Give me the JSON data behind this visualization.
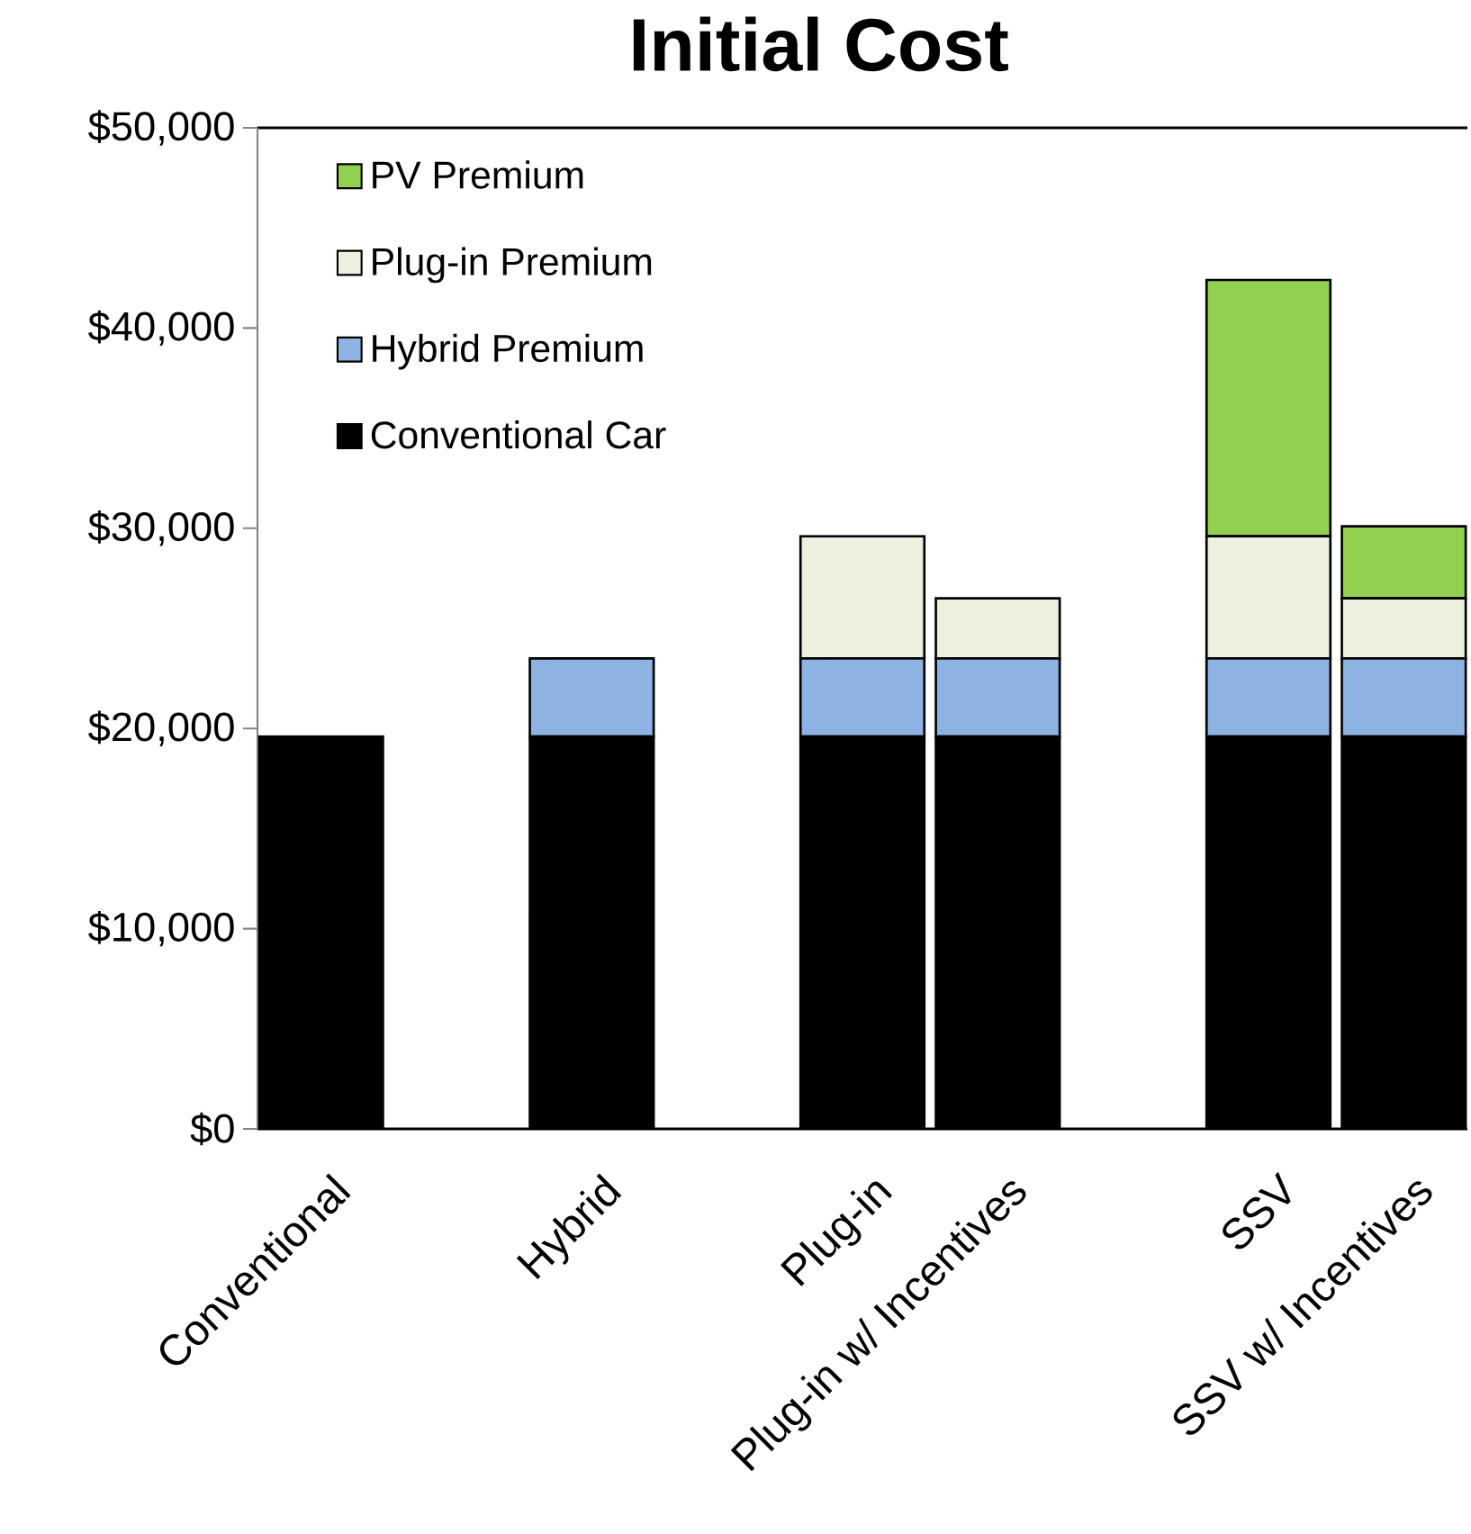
{
  "chart_data": {
    "type": "bar",
    "title": "Initial Cost",
    "stacked": true,
    "legend": "top left",
    "categories": [
      "Conventional",
      null,
      "Hybrid",
      null,
      "Plug-in",
      "Plug-in w/ Incentives",
      null,
      "SSV",
      "SSV w/ Incentives"
    ],
    "series": [
      {
        "name": "Conventional Car",
        "color": "#000000",
        "values": [
          19600,
          null,
          19600,
          null,
          19600,
          19600,
          null,
          19600,
          19600
        ]
      },
      {
        "name": "Hybrid Premium",
        "color": "#8db3e2",
        "values": [
          null,
          null,
          3900,
          null,
          3900,
          3900,
          null,
          3900,
          3900
        ]
      },
      {
        "name": "Plug-in Premium",
        "color": "#ebf1de",
        "values": [
          null,
          null,
          null,
          null,
          6100,
          3000,
          null,
          6100,
          3000
        ]
      },
      {
        "name": "PV Premium",
        "color": "#92d050",
        "values": [
          null,
          null,
          null,
          null,
          null,
          null,
          null,
          12800,
          3600
        ]
      }
    ],
    "ylim": [
      0,
      50000
    ],
    "yticks": [
      {
        "value": 0,
        "label": "$0"
      },
      {
        "value": 10000,
        "label": "$10,000"
      },
      {
        "value": 20000,
        "label": "$20,000"
      },
      {
        "value": 30000,
        "label": "$30,000"
      },
      {
        "value": 40000,
        "label": "$40,000"
      },
      {
        "value": 50000,
        "label": "$50,000"
      }
    ]
  }
}
